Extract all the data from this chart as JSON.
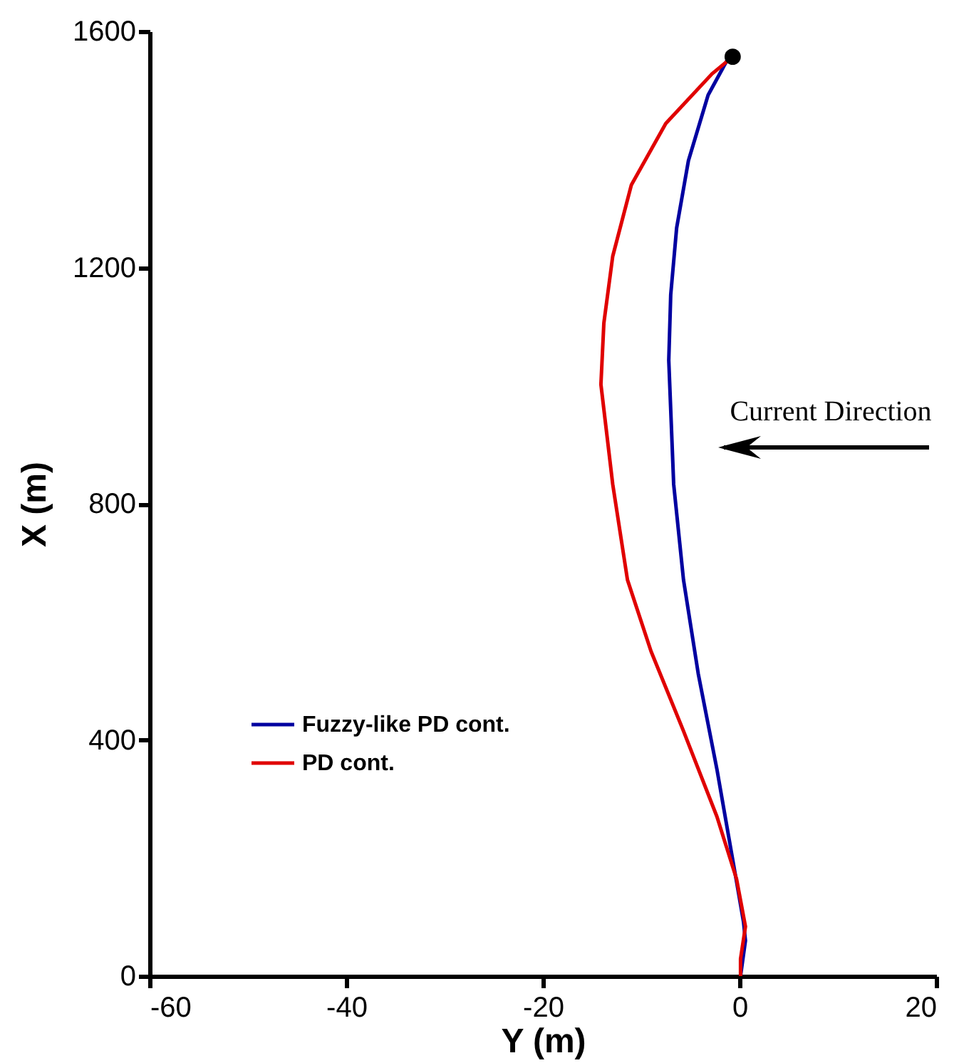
{
  "chart_data": {
    "type": "line",
    "xlabel": "Y (m)",
    "ylabel": "X (m)",
    "xlim": [
      -60,
      20
    ],
    "xticks": [
      -60,
      -40,
      -20,
      0,
      20
    ],
    "ylim": [
      0,
      1600
    ],
    "yticks": [
      0,
      400,
      800,
      1200,
      1600
    ],
    "grid": false,
    "legend": "bottom left",
    "annotations": [
      "Current Direction"
    ],
    "series": [
      {
        "name": "Fuzzy-like PD cont.",
        "color": "#0000a0",
        "x": [
          0.1,
          0.6,
          0.4,
          -0.6,
          -2.3,
          -4.2,
          -5.7,
          -6.7,
          -7.2,
          -7.0,
          -6.4,
          -5.2,
          -3.2,
          -1.3,
          -0.7
        ],
        "values": [
          0,
          60,
          92,
          188,
          350,
          512,
          671,
          833,
          1043,
          1154,
          1267,
          1381,
          1492,
          1550,
          1557
        ]
      },
      {
        "name": "PD cont.",
        "color": "#e00000",
        "x": [
          0.1,
          0.1,
          0.6,
          -0.3,
          -2.3,
          -5.7,
          -9.0,
          -11.4,
          -12.9,
          -14.1,
          -13.8,
          -12.9,
          -11.0,
          -7.5,
          -2.8,
          -0.7
        ],
        "values": [
          0,
          29,
          84,
          164,
          270,
          415,
          550,
          671,
          833,
          1002,
          1106,
          1219,
          1340,
          1444,
          1528,
          1557
        ]
      },
      {
        "type": "scatter",
        "color": "#000000",
        "marker": "circle",
        "x": [
          -0.7
        ],
        "values": [
          1557
        ]
      }
    ]
  }
}
